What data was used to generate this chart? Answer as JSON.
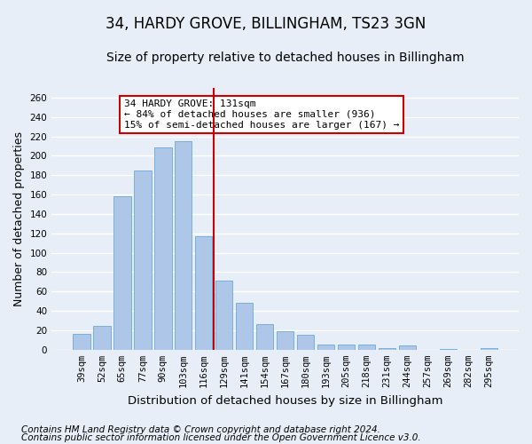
{
  "title": "34, HARDY GROVE, BILLINGHAM, TS23 3GN",
  "subtitle": "Size of property relative to detached houses in Billingham",
  "xlabel": "Distribution of detached houses by size in Billingham",
  "ylabel": "Number of detached properties",
  "categories": [
    "39sqm",
    "52sqm",
    "65sqm",
    "77sqm",
    "90sqm",
    "103sqm",
    "116sqm",
    "129sqm",
    "141sqm",
    "154sqm",
    "167sqm",
    "180sqm",
    "193sqm",
    "205sqm",
    "218sqm",
    "231sqm",
    "244sqm",
    "257sqm",
    "269sqm",
    "282sqm",
    "295sqm"
  ],
  "values": [
    16,
    25,
    158,
    185,
    209,
    215,
    117,
    71,
    48,
    26,
    19,
    15,
    5,
    5,
    5,
    2,
    4,
    0,
    1,
    0,
    2
  ],
  "bar_color": "#aec6e8",
  "bar_edge_color": "#6aaad4",
  "vline_position": 6.5,
  "vline_color": "#cc0000",
  "annotation_text": "34 HARDY GROVE: 131sqm\n← 84% of detached houses are smaller (936)\n15% of semi-detached houses are larger (167) →",
  "annotation_box_color": "#ffffff",
  "annotation_box_edge": "#cc0000",
  "bg_color": "#e8eef7",
  "plot_bg_color": "#e8eef7",
  "grid_color": "#ffffff",
  "ylim": [
    0,
    270
  ],
  "yticks": [
    0,
    20,
    40,
    60,
    80,
    100,
    120,
    140,
    160,
    180,
    200,
    220,
    240,
    260
  ],
  "footer_line1": "Contains HM Land Registry data © Crown copyright and database right 2024.",
  "footer_line2": "Contains public sector information licensed under the Open Government Licence v3.0.",
  "title_fontsize": 12,
  "subtitle_fontsize": 10,
  "xlabel_fontsize": 9.5,
  "ylabel_fontsize": 9,
  "tick_fontsize": 7.5,
  "footer_fontsize": 7.5,
  "annotation_fontsize": 8
}
